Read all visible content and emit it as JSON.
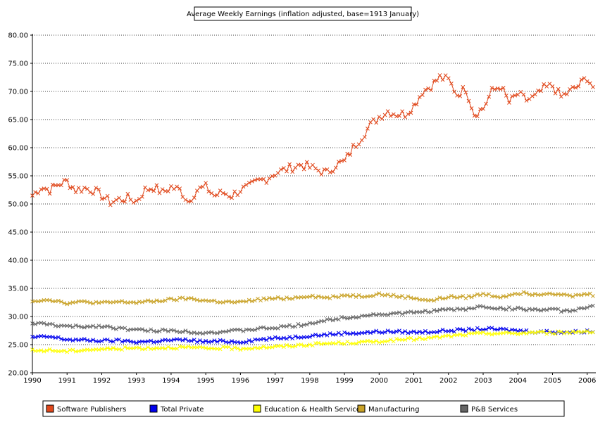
{
  "chart_data": {
    "type": "line",
    "title": "Average Weekly Earnings (inflation adjusted, base=1913 January)",
    "xlabel": "",
    "ylabel": "",
    "ylim": [
      20,
      80
    ],
    "xlim": [
      1990,
      2006.25
    ],
    "grid": "horizontal dotted",
    "legend_position": "bottom",
    "y_ticks": [
      "20.00",
      "25.00",
      "30.00",
      "35.00",
      "40.00",
      "45.00",
      "50.00",
      "55.00",
      "60.00",
      "65.00",
      "70.00",
      "75.00",
      "80.00"
    ],
    "x_ticks": [
      "1990",
      "1991",
      "1992",
      "1993",
      "1994",
      "1995",
      "1996",
      "1997",
      "1998",
      "1999",
      "2000",
      "2001",
      "2002",
      "2003",
      "2004",
      "2005",
      "2006"
    ],
    "series": [
      {
        "name": "Software Publishers",
        "color": "#e0481c",
        "x": [
          1990.0,
          1990.25,
          1990.5,
          1990.75,
          1991.0,
          1991.25,
          1991.5,
          1991.75,
          1992.0,
          1992.25,
          1992.5,
          1992.75,
          1993.0,
          1993.25,
          1993.5,
          1993.75,
          1994.0,
          1994.25,
          1994.5,
          1994.75,
          1995.0,
          1995.25,
          1995.5,
          1995.75,
          1996.0,
          1996.25,
          1996.5,
          1996.75,
          1997.0,
          1997.25,
          1997.5,
          1997.75,
          1998.0,
          1998.25,
          1998.5,
          1998.75,
          1999.0,
          1999.25,
          1999.5,
          1999.75,
          2000.0,
          2000.25,
          2000.5,
          2000.75,
          2001.0,
          2001.25,
          2001.5,
          2001.75,
          2002.0,
          2002.25,
          2002.5,
          2002.75,
          2003.0,
          2003.25,
          2003.5,
          2003.75,
          2004.0,
          2004.25,
          2004.5,
          2004.75,
          2005.0,
          2005.25,
          2005.5,
          2005.75,
          2006.0,
          2006.2
        ],
        "values": [
          51.5,
          53.0,
          52.5,
          53.5,
          54.0,
          52.5,
          52.8,
          52.5,
          51.5,
          50.3,
          50.8,
          51.0,
          50.5,
          52.5,
          53.0,
          52.0,
          53.0,
          52.5,
          50.5,
          52.5,
          53.0,
          51.5,
          52.0,
          51.5,
          52.5,
          53.0,
          54.0,
          54.5,
          55.5,
          56.0,
          56.5,
          57.0,
          56.5,
          56.0,
          55.5,
          57.0,
          57.5,
          60.0,
          62.0,
          64.0,
          65.5,
          66.5,
          66.0,
          66.0,
          67.5,
          70.0,
          71.0,
          72.5,
          72.0,
          69.5,
          70.5,
          66.0,
          67.0,
          70.0,
          71.0,
          68.0,
          69.5,
          68.5,
          69.0,
          70.5,
          71.0,
          69.0,
          70.0,
          71.0,
          72.5,
          70.5
        ]
      },
      {
        "name": "Total Private",
        "color": "#0000ee",
        "x": [
          1990.0,
          1990.5,
          1991.0,
          1991.5,
          1992.0,
          1992.5,
          1993.0,
          1993.5,
          1994.0,
          1994.5,
          1995.0,
          1995.5,
          1996.0,
          1996.5,
          1997.0,
          1997.5,
          1998.0,
          1998.5,
          1999.0,
          1999.5,
          2000.0,
          2000.5,
          2001.0,
          2001.5,
          2002.0,
          2002.5,
          2003.0,
          2003.5,
          2004.0,
          2004.5,
          2005.0,
          2005.5,
          2006.0,
          2006.2
        ],
        "values": [
          26.3,
          26.4,
          25.9,
          25.8,
          25.7,
          25.7,
          25.5,
          25.6,
          25.8,
          25.8,
          25.5,
          25.6,
          25.5,
          25.9,
          26.1,
          26.3,
          26.6,
          26.8,
          27.0,
          27.1,
          27.3,
          27.3,
          27.2,
          27.3,
          27.5,
          27.6,
          27.8,
          27.7,
          27.5,
          27.3,
          27.3,
          27.2,
          27.4,
          27.3
        ]
      },
      {
        "name": "Education & Health Services",
        "color": "#ffff00",
        "x": [
          1990.0,
          1990.5,
          1991.0,
          1991.5,
          1992.0,
          1992.5,
          1993.0,
          1993.5,
          1994.0,
          1994.5,
          1995.0,
          1995.5,
          1996.0,
          1996.5,
          1997.0,
          1997.5,
          1998.0,
          1998.5,
          1999.0,
          1999.5,
          2000.0,
          2000.5,
          2001.0,
          2001.5,
          2002.0,
          2002.5,
          2003.0,
          2003.5,
          2004.0,
          2004.5,
          2005.0,
          2005.5,
          2006.0,
          2006.2
        ],
        "values": [
          23.9,
          24.0,
          23.8,
          24.1,
          24.2,
          24.3,
          24.4,
          24.4,
          24.5,
          24.5,
          24.3,
          24.4,
          24.3,
          24.5,
          24.6,
          24.8,
          25.0,
          25.2,
          25.3,
          25.4,
          25.6,
          25.8,
          26.0,
          26.2,
          26.5,
          26.8,
          27.0,
          27.0,
          27.0,
          27.2,
          27.1,
          27.2,
          27.4,
          27.3
        ]
      },
      {
        "name": "Manufacturing",
        "color": "#c9a227",
        "x": [
          1990.0,
          1990.5,
          1991.0,
          1991.5,
          1992.0,
          1992.5,
          1993.0,
          1993.5,
          1994.0,
          1994.5,
          1995.0,
          1995.5,
          1996.0,
          1996.5,
          1997.0,
          1997.5,
          1998.0,
          1998.5,
          1999.0,
          1999.5,
          2000.0,
          2000.5,
          2001.0,
          2001.5,
          2002.0,
          2002.5,
          2003.0,
          2003.5,
          2004.0,
          2004.5,
          2005.0,
          2005.5,
          2006.0,
          2006.2
        ],
        "values": [
          32.8,
          33.0,
          32.4,
          32.6,
          32.4,
          32.6,
          32.5,
          32.7,
          33.0,
          33.2,
          32.8,
          32.6,
          32.5,
          33.0,
          33.2,
          33.3,
          33.7,
          33.3,
          33.8,
          33.6,
          34.0,
          33.6,
          33.3,
          32.8,
          33.5,
          33.4,
          34.0,
          33.5,
          34.2,
          34.0,
          34.2,
          33.6,
          34.0,
          33.8
        ]
      },
      {
        "name": "P&B Services",
        "color": "#666666",
        "x": [
          1990.0,
          1990.5,
          1991.0,
          1991.5,
          1992.0,
          1992.5,
          1993.0,
          1993.5,
          1994.0,
          1994.5,
          1995.0,
          1995.5,
          1996.0,
          1996.5,
          1997.0,
          1997.5,
          1998.0,
          1998.5,
          1999.0,
          1999.5,
          2000.0,
          2000.5,
          2001.0,
          2001.5,
          2002.0,
          2002.5,
          2003.0,
          2003.5,
          2004.0,
          2004.5,
          2005.0,
          2005.5,
          2006.0,
          2006.2
        ],
        "values": [
          28.8,
          28.6,
          28.2,
          28.2,
          28.3,
          27.9,
          27.6,
          27.5,
          27.5,
          27.3,
          27.1,
          27.3,
          27.5,
          27.8,
          28.0,
          28.3,
          28.8,
          29.3,
          29.8,
          30.1,
          30.4,
          30.5,
          30.7,
          31.0,
          31.2,
          31.3,
          31.8,
          31.4,
          31.4,
          31.2,
          31.2,
          30.9,
          31.8,
          31.7
        ]
      }
    ]
  }
}
